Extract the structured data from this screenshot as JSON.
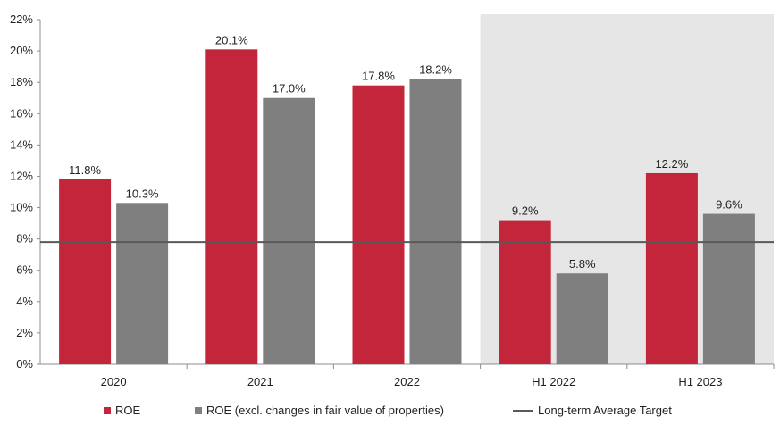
{
  "chart_data": {
    "type": "bar",
    "categories": [
      "2020",
      "2021",
      "2022",
      "H1 2022",
      "H1 2023"
    ],
    "series": [
      {
        "name": "ROE",
        "values": [
          11.8,
          20.1,
          17.8,
          9.2,
          12.2
        ],
        "color": "#c3253a",
        "labels": [
          "11.8%",
          "20.1%",
          "17.8%",
          "9.2%",
          "12.2%"
        ]
      },
      {
        "name": "ROE (excl. changes in fair value of properties)",
        "values": [
          10.3,
          17.0,
          18.2,
          5.8,
          9.6
        ],
        "color": "#7f7f7f",
        "labels": [
          "10.3%",
          "17.0%",
          "18.2%",
          "5.8%",
          "9.6%"
        ]
      }
    ],
    "target_line": {
      "name": "Long-term Average Target",
      "value": 7.8,
      "color": "#595959"
    },
    "highlighted_categories": [
      "H1 2022",
      "H1 2023"
    ],
    "highlight_color": "#e6e6e6",
    "ylim": [
      0,
      22
    ],
    "yticks": [
      "0%",
      "2%",
      "4%",
      "6%",
      "8%",
      "10%",
      "12%",
      "14%",
      "16%",
      "18%",
      "20%",
      "22%"
    ],
    "xlabel": "",
    "ylabel": "",
    "title": "",
    "grid": false,
    "legend_position": "bottom"
  }
}
